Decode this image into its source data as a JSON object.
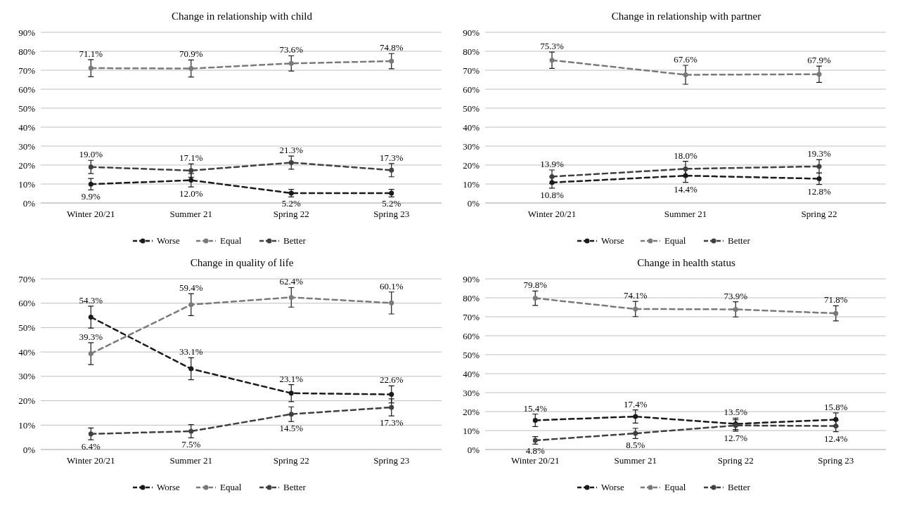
{
  "chart_data": [
    {
      "type": "line",
      "title": "Change in relationship with child",
      "categories": [
        "Winter 20/21",
        "Summer 21",
        "Spring 22",
        "Spring 23"
      ],
      "ylim": [
        0,
        90
      ],
      "yticks": [
        {
          "value": 0,
          "label": "0%"
        },
        {
          "value": 10,
          "label": "10%"
        },
        {
          "value": 20,
          "label": "20%"
        },
        {
          "value": 30,
          "label": "30%"
        },
        {
          "value": 40,
          "label": "40%"
        },
        {
          "value": 50,
          "label": "50%"
        },
        {
          "value": 60,
          "label": "60%"
        },
        {
          "value": 70,
          "label": "70%"
        },
        {
          "value": 80,
          "label": "80%"
        },
        {
          "value": 90,
          "label": "90%"
        }
      ],
      "grid": "y",
      "legend": "bottom",
      "marker": "circle",
      "line_style": "dashed",
      "series": [
        {
          "name": "Worse",
          "color": "#1a1a1a",
          "values": [
            9.9,
            12.0,
            5.2,
            5.2
          ],
          "errors": [
            3,
            3.5,
            2,
            2
          ],
          "value_labels": [
            "9.9%",
            "12.0%",
            "5.2%",
            "5.2%"
          ]
        },
        {
          "name": "Equal",
          "color": "#7a7a7a",
          "values": [
            71.1,
            70.9,
            73.6,
            74.8
          ],
          "errors": [
            4.5,
            4.5,
            4,
            4
          ],
          "value_labels": [
            "71.1%",
            "70.9%",
            "73.6%",
            "74.8%"
          ]
        },
        {
          "name": "Better",
          "color": "#404040",
          "values": [
            19.0,
            17.1,
            21.3,
            17.3
          ],
          "errors": [
            3.5,
            3.5,
            3.5,
            3.5
          ],
          "value_labels": [
            "19.0%",
            "17.1%",
            "21.3%",
            "17.3%"
          ]
        }
      ]
    },
    {
      "type": "line",
      "title": "Change in relationship with partner",
      "categories": [
        "Winter 20/21",
        "Summer 21",
        "Spring 22"
      ],
      "ylim": [
        0,
        90
      ],
      "yticks": [
        {
          "value": 0,
          "label": "0%"
        },
        {
          "value": 10,
          "label": "10%"
        },
        {
          "value": 20,
          "label": "20%"
        },
        {
          "value": 30,
          "label": "30%"
        },
        {
          "value": 40,
          "label": "40%"
        },
        {
          "value": 50,
          "label": "50%"
        },
        {
          "value": 60,
          "label": "60%"
        },
        {
          "value": 70,
          "label": "70%"
        },
        {
          "value": 80,
          "label": "80%"
        },
        {
          "value": 90,
          "label": "90%"
        }
      ],
      "grid": "y",
      "legend": "bottom",
      "marker": "circle",
      "line_style": "dashed",
      "series": [
        {
          "name": "Worse",
          "color": "#1a1a1a",
          "values": [
            10.8,
            14.4,
            12.8
          ],
          "errors": [
            3,
            3.5,
            3
          ],
          "value_labels": [
            "10.8%",
            "14.4%",
            "12.8%"
          ]
        },
        {
          "name": "Equal",
          "color": "#7a7a7a",
          "values": [
            75.3,
            67.6,
            67.9
          ],
          "errors": [
            4.3,
            5,
            4.3
          ],
          "value_labels": [
            "75.3%",
            "67.6%",
            "67.9%"
          ]
        },
        {
          "name": "Better",
          "color": "#404040",
          "values": [
            13.9,
            18.0,
            19.3
          ],
          "errors": [
            3.5,
            4,
            3.5
          ],
          "value_labels": [
            "13.9%",
            "18.0%",
            "19.3%"
          ]
        }
      ]
    },
    {
      "type": "line",
      "title": "Change in quality of life",
      "categories": [
        "Winter 20/21",
        "Summer 21",
        "Spring 22",
        "Spring 23"
      ],
      "ylim": [
        0,
        70
      ],
      "yticks": [
        {
          "value": 0,
          "label": "0%"
        },
        {
          "value": 10,
          "label": "10%"
        },
        {
          "value": 20,
          "label": "20%"
        },
        {
          "value": 30,
          "label": "30%"
        },
        {
          "value": 40,
          "label": "40%"
        },
        {
          "value": 50,
          "label": "50%"
        },
        {
          "value": 60,
          "label": "60%"
        },
        {
          "value": 70,
          "label": "70%"
        }
      ],
      "grid": "y",
      "legend": "bottom",
      "marker": "circle",
      "line_style": "dashed",
      "series": [
        {
          "name": "Worse",
          "color": "#1a1a1a",
          "values": [
            54.3,
            33.1,
            23.1,
            22.6
          ],
          "errors": [
            4.5,
            4.5,
            3.5,
            3.5
          ],
          "value_labels": [
            "54.3%",
            "33.1%",
            "23.1%",
            "22.6%"
          ]
        },
        {
          "name": "Equal",
          "color": "#7a7a7a",
          "values": [
            39.3,
            59.4,
            62.4,
            60.1
          ],
          "errors": [
            4.5,
            4.5,
            4,
            4.5
          ],
          "value_labels": [
            "39.3%",
            "59.4%",
            "62.4%",
            "60.1%"
          ]
        },
        {
          "name": "Better",
          "color": "#404040",
          "values": [
            6.4,
            7.5,
            14.5,
            17.3
          ],
          "errors": [
            2.4,
            2.7,
            3,
            3.5
          ],
          "value_labels": [
            "6.4%",
            "7.5%",
            "14.5%",
            "17.3%"
          ]
        }
      ]
    },
    {
      "type": "line",
      "title": "Change in health status",
      "categories": [
        "Winter 20/21",
        "Summer 21",
        "Spring 22",
        "Spring 23"
      ],
      "ylim": [
        0,
        90
      ],
      "yticks": [
        {
          "value": 0,
          "label": "0%"
        },
        {
          "value": 10,
          "label": "10%"
        },
        {
          "value": 20,
          "label": "20%"
        },
        {
          "value": 30,
          "label": "30%"
        },
        {
          "value": 40,
          "label": "40%"
        },
        {
          "value": 50,
          "label": "50%"
        },
        {
          "value": 60,
          "label": "60%"
        },
        {
          "value": 70,
          "label": "70%"
        },
        {
          "value": 80,
          "label": "80%"
        },
        {
          "value": 90,
          "label": "90%"
        }
      ],
      "grid": "y",
      "legend": "bottom",
      "marker": "circle",
      "line_style": "dashed",
      "series": [
        {
          "name": "Worse",
          "color": "#1a1a1a",
          "values": [
            15.4,
            17.4,
            13.5,
            15.8
          ],
          "errors": [
            3.3,
            3.5,
            3,
            3.5
          ],
          "value_labels": [
            "15.4%",
            "17.4%",
            "13.5%",
            "15.8%"
          ]
        },
        {
          "name": "Equal",
          "color": "#7a7a7a",
          "values": [
            79.8,
            74.1,
            73.9,
            71.8
          ],
          "errors": [
            3.8,
            4,
            4,
            4
          ],
          "value_labels": [
            "79.8%",
            "74.1%",
            "73.9%",
            "71.8%"
          ]
        },
        {
          "name": "Better",
          "color": "#404040",
          "values": [
            4.8,
            8.5,
            12.7,
            12.4
          ],
          "errors": [
            2,
            2.7,
            3,
            3
          ],
          "value_labels": [
            "4.8%",
            "8.5%",
            "12.7%",
            "12.4%"
          ]
        }
      ]
    }
  ]
}
